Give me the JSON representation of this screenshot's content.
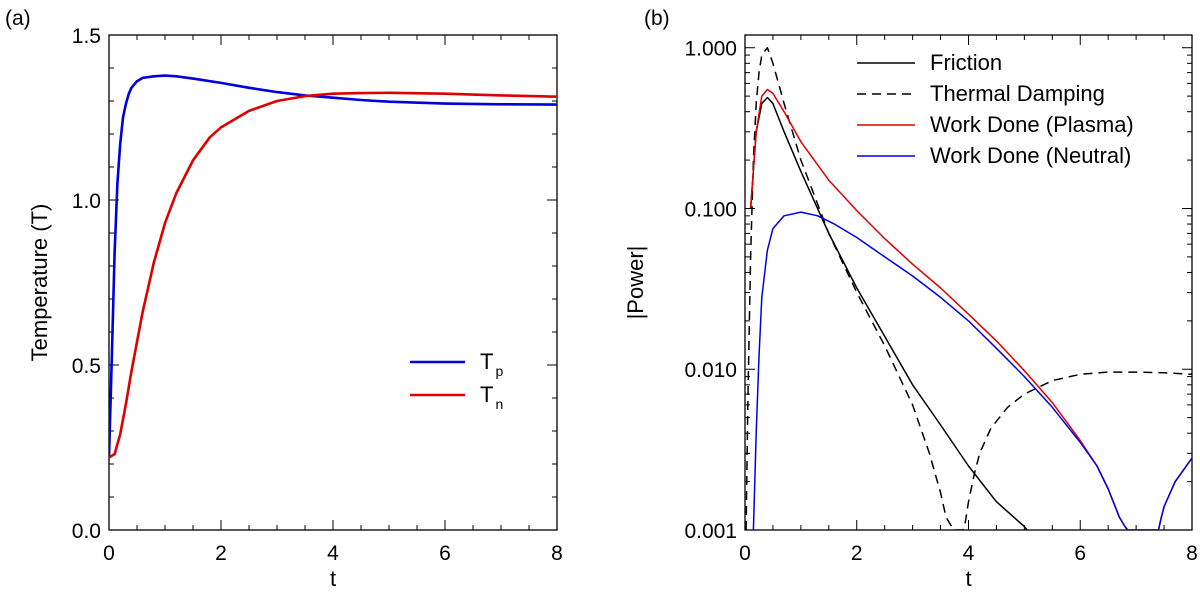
{
  "chart_data": [
    {
      "panel_label": "(a)",
      "type": "line",
      "xlabel": "t",
      "ylabel": "Temperature (T)",
      "xlim": [
        0,
        8
      ],
      "ylim": [
        0,
        1.5
      ],
      "yscale": "linear",
      "xticks": [
        0,
        2,
        4,
        6,
        8
      ],
      "xtick_labels": [
        "0",
        "2",
        "4",
        "6",
        "8"
      ],
      "yticks": [
        0,
        0.5,
        1.0,
        1.5
      ],
      "ytick_labels": [
        "0.0",
        "0.5",
        "1.0",
        "1.5"
      ],
      "legend_position": "center-right",
      "series": [
        {
          "name": "T_p",
          "legend_main": "T",
          "legend_sub": "p",
          "color": "#0000dd",
          "dash": "solid",
          "x": [
            0,
            0.05,
            0.1,
            0.15,
            0.2,
            0.25,
            0.3,
            0.35,
            0.4,
            0.5,
            0.6,
            0.8,
            1.0,
            1.2,
            1.5,
            2.0,
            2.5,
            3.0,
            3.5,
            4.0,
            4.5,
            5.0,
            6.0,
            7.0,
            8.0
          ],
          "y": [
            0.22,
            0.52,
            0.84,
            1.05,
            1.17,
            1.25,
            1.29,
            1.32,
            1.34,
            1.36,
            1.37,
            1.375,
            1.377,
            1.375,
            1.368,
            1.355,
            1.34,
            1.327,
            1.317,
            1.31,
            1.303,
            1.298,
            1.292,
            1.29,
            1.289
          ]
        },
        {
          "name": "T_n",
          "legend_main": "T",
          "legend_sub": "n",
          "color": "#dd0000",
          "dash": "solid",
          "x": [
            0,
            0.05,
            0.1,
            0.2,
            0.3,
            0.4,
            0.5,
            0.6,
            0.8,
            1.0,
            1.2,
            1.5,
            1.8,
            2.0,
            2.5,
            3.0,
            3.5,
            4.0,
            4.5,
            5.0,
            6.0,
            7.0,
            8.0
          ],
          "y": [
            0.22,
            0.225,
            0.23,
            0.29,
            0.38,
            0.48,
            0.57,
            0.66,
            0.81,
            0.93,
            1.02,
            1.12,
            1.19,
            1.22,
            1.27,
            1.3,
            1.315,
            1.322,
            1.324,
            1.325,
            1.322,
            1.317,
            1.313
          ]
        }
      ]
    },
    {
      "panel_label": "(b)",
      "type": "line",
      "xlabel": "t",
      "ylabel": "|Power|",
      "xlim": [
        0,
        8
      ],
      "ylim": [
        0.001,
        1.2
      ],
      "yscale": "log",
      "xticks": [
        0,
        2,
        4,
        6,
        8
      ],
      "xtick_labels": [
        "0",
        "2",
        "4",
        "6",
        "8"
      ],
      "yticks": [
        0.001,
        0.01,
        0.1,
        1.0
      ],
      "ytick_labels": [
        "0.001",
        "0.010",
        "0.100",
        "1.000"
      ],
      "legend_position": "top-right",
      "series": [
        {
          "name": "Friction",
          "color": "#000000",
          "dash": "solid",
          "x": [
            0.1,
            0.2,
            0.3,
            0.4,
            0.5,
            0.7,
            1.0,
            1.5,
            2.0,
            2.5,
            3.0,
            3.5,
            4.0,
            4.5,
            5.0,
            5.05
          ],
          "y": [
            0.1,
            0.3,
            0.45,
            0.49,
            0.45,
            0.3,
            0.17,
            0.07,
            0.032,
            0.016,
            0.008,
            0.0045,
            0.0025,
            0.0015,
            0.00105,
            0.001
          ]
        },
        {
          "name": "Thermal Damping",
          "color": "#000000",
          "dash": "dashed",
          "x": [
            0.02,
            0.05,
            0.1,
            0.15,
            0.2,
            0.25,
            0.3,
            0.4,
            0.5,
            0.7,
            1.0,
            1.5,
            2.0,
            2.5,
            3.0,
            3.3,
            3.5,
            3.6,
            3.7,
            3.73,
            3.9,
            3.93,
            4.0,
            4.1,
            4.2,
            4.4,
            4.7,
            5.0,
            5.5,
            6.0,
            6.5,
            7.0,
            7.5,
            8.0
          ],
          "y": [
            0.001,
            0.006,
            0.05,
            0.2,
            0.45,
            0.7,
            0.9,
            1.0,
            0.8,
            0.45,
            0.2,
            0.07,
            0.03,
            0.014,
            0.006,
            0.003,
            0.0017,
            0.0012,
            0.00105,
            0.001,
            0.001,
            0.00105,
            0.0015,
            0.0022,
            0.003,
            0.0043,
            0.0058,
            0.007,
            0.0085,
            0.0093,
            0.0096,
            0.0096,
            0.0095,
            0.0093
          ]
        },
        {
          "name": "Work Done (Plasma)",
          "color": "#dd0000",
          "dash": "solid",
          "x": [
            0.1,
            0.2,
            0.3,
            0.4,
            0.5,
            0.7,
            1.0,
            1.5,
            2.0,
            2.5,
            3.0,
            3.5,
            4.0,
            4.5,
            5.0,
            5.5,
            6.0,
            6.3,
            6.5,
            6.7,
            6.8,
            6.85,
            7.4,
            7.45,
            7.5,
            7.7,
            8.0
          ],
          "y": [
            0.1,
            0.3,
            0.5,
            0.55,
            0.52,
            0.4,
            0.26,
            0.15,
            0.097,
            0.065,
            0.045,
            0.032,
            0.022,
            0.015,
            0.0098,
            0.0062,
            0.0036,
            0.0025,
            0.0018,
            0.0012,
            0.00105,
            0.001,
            0.001,
            0.0012,
            0.0014,
            0.002,
            0.0028
          ]
        },
        {
          "name": "Work Done (Neutral)",
          "color": "#0000dd",
          "dash": "solid",
          "x": [
            0.15,
            0.2,
            0.25,
            0.3,
            0.4,
            0.5,
            0.7,
            1.0,
            1.3,
            1.6,
            2.0,
            2.5,
            3.0,
            3.5,
            4.0,
            4.5,
            5.0,
            5.5,
            6.0,
            6.3,
            6.5,
            6.7,
            6.8,
            6.85,
            7.4,
            7.45,
            7.5,
            7.7,
            8.0
          ],
          "y": [
            0.001,
            0.004,
            0.012,
            0.028,
            0.055,
            0.075,
            0.09,
            0.095,
            0.09,
            0.08,
            0.066,
            0.05,
            0.038,
            0.028,
            0.02,
            0.0135,
            0.009,
            0.0058,
            0.0035,
            0.0025,
            0.0018,
            0.0012,
            0.00105,
            0.001,
            0.001,
            0.0012,
            0.0014,
            0.002,
            0.0028
          ]
        }
      ]
    }
  ]
}
